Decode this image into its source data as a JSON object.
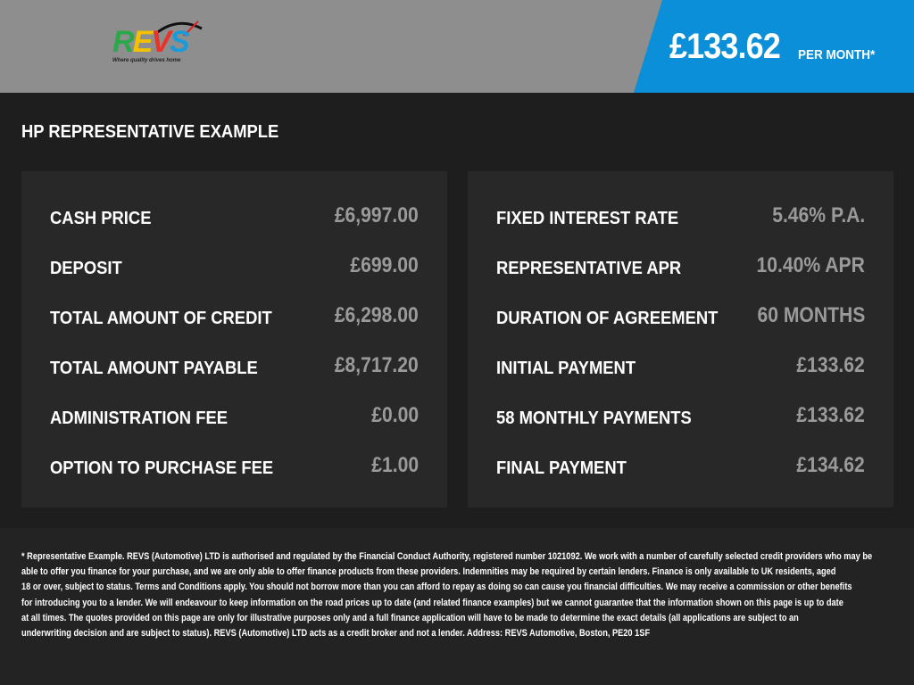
{
  "header": {
    "logo_text": "REVS",
    "logo_tagline": "Where quality drives home",
    "monthly_price": "£133.62",
    "per_month_label": "PER MONTH*",
    "colors": {
      "header_bg": "#8e8e8e",
      "accent": "#0a8fd8"
    }
  },
  "title": "HP REPRESENTATIVE EXAMPLE",
  "left_panel": [
    {
      "label": "CASH PRICE",
      "value": "£6,997.00"
    },
    {
      "label": "DEPOSIT",
      "value": "£699.00"
    },
    {
      "label": "TOTAL AMOUNT OF CREDIT",
      "value": "£6,298.00"
    },
    {
      "label": "TOTAL AMOUNT PAYABLE",
      "value": "£8,717.20"
    },
    {
      "label": "ADMINISTRATION FEE",
      "value": "£0.00"
    },
    {
      "label": "OPTION TO PURCHASE FEE",
      "value": "£1.00"
    }
  ],
  "right_panel": [
    {
      "label": "FIXED INTEREST RATE",
      "value": "5.46% P.A."
    },
    {
      "label": "REPRESENTATIVE APR",
      "value": "10.40% APR"
    },
    {
      "label": "DURATION OF AGREEMENT",
      "value": "60 MONTHS"
    },
    {
      "label": "INITIAL PAYMENT",
      "value": "£133.62"
    },
    {
      "label": "58 MONTHLY PAYMENTS",
      "value": "£133.62"
    },
    {
      "label": "FINAL PAYMENT",
      "value": "£134.62"
    }
  ],
  "footer_lines": [
    "* Representative Example. REVS (Automotive) LTD is authorised and regulated by the Financial Conduct Authority, registered number 1021092. We work with a number of carefully selected credit providers who may be",
    "able to offer you finance for your purchase, and we are only able to offer finance products from these providers. Indemnities may be required by certain lenders. Finance is only available to UK residents, aged",
    "18 or over, subject to status. Terms and Conditions apply. You should not borrow more than you can afford to repay as doing so can cause you financial difficulties. We may receive a commission or other benefits",
    "for introducing you to a lender. We will endeavour to keep information on the road prices up to date (and related finance examples) but we cannot guarantee that the information shown on this page is up to date",
    "at all times. The quotes provided on this page are only for illustrative purposes only and a full finance application will have to be made to determine the exact details (all applications are subject to an",
    "underwriting decision and are subject to status). REVS (Automotive) LTD acts as a credit broker and not a lender. Address: REVS Automotive, Boston, PE20 1SF"
  ]
}
